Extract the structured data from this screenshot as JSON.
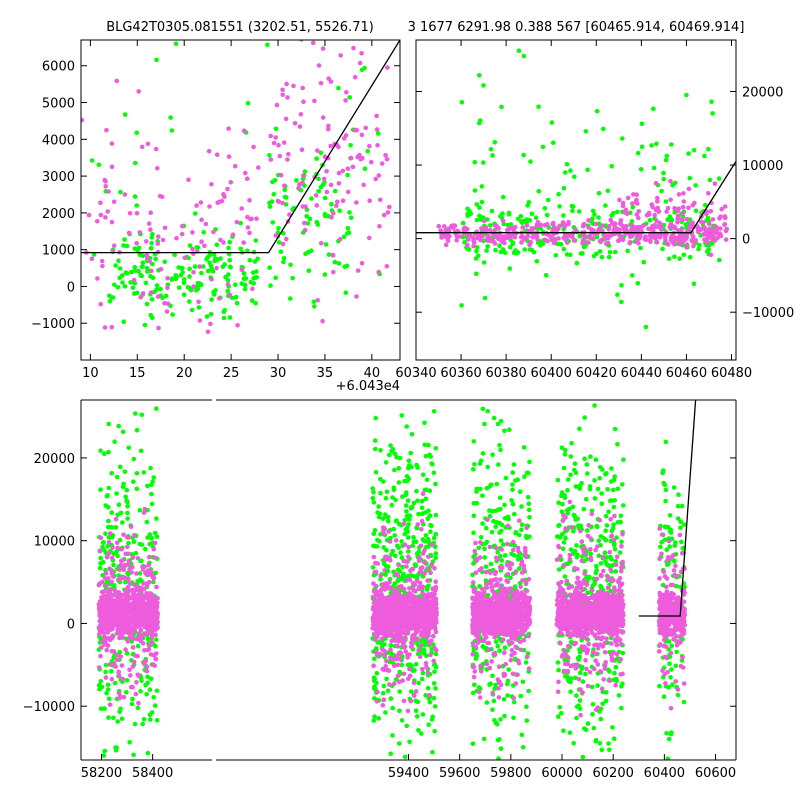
{
  "title_left": "BLG42T0305.081551 (3202.51, 5526.71)",
  "title_right": "3 1677 6291.98 0.388 567 [60465.914, 60469.914]",
  "colors": {
    "series_a": "#00ff00",
    "series_b": "#ee5cdd",
    "fit": "#000000"
  },
  "chart_data": [
    {
      "type": "scatter",
      "panel": "top-left zoom",
      "x_offset_label": "+6.043e4",
      "xlim": [
        9,
        43
      ],
      "ylim": [
        -2000,
        6700
      ],
      "xticks": [
        10,
        15,
        20,
        25,
        30,
        35,
        40
      ],
      "yticks": [
        -1000,
        0,
        1000,
        2000,
        3000,
        4000,
        5000,
        6000
      ],
      "grid": false,
      "fit_line": {
        "x": [
          9,
          29,
          43
        ],
        "y": [
          920,
          920,
          6700
        ]
      },
      "series": [
        {
          "color": "series_a",
          "clusters": [
            {
              "x": [
                12,
                28
              ],
              "y_center": 300,
              "y_spread": 700,
              "count": 190
            },
            {
              "x": [
                29,
                38
              ],
              "y_center": 2000,
              "y_spread": 1200,
              "count": 80
            },
            {
              "x": [
                9,
                42
              ],
              "y_center": 3500,
              "y_spread": 3000,
              "count": 45
            }
          ]
        },
        {
          "color": "series_b",
          "clusters": [
            {
              "x": [
                9,
                28
              ],
              "y_center": 1500,
              "y_spread": 1500,
              "count": 110
            },
            {
              "x": [
                29,
                42
              ],
              "y_center": 3500,
              "y_spread": 1800,
              "count": 110
            },
            {
              "x": [
                9,
                42
              ],
              "y_center": 3000,
              "y_spread": 3500,
              "count": 40
            }
          ]
        }
      ]
    },
    {
      "type": "scatter",
      "panel": "top-right zoom",
      "xlim": [
        60340,
        60482
      ],
      "ylim": [
        -16500,
        27000
      ],
      "xtick_labels": [
        "60340",
        "60360",
        "60380",
        "60400",
        "60420",
        "60440",
        "60460",
        "60480"
      ],
      "yticks": [
        -10000,
        0,
        10000,
        20000
      ],
      "y_axis_side": "right",
      "grid": false,
      "fit_line": {
        "x": [
          60340,
          60462,
          60482
        ],
        "y": [
          800,
          800,
          10500
        ]
      },
      "series": [
        {
          "color": "series_a",
          "clusters": [
            {
              "x": [
                60360,
                60475
              ],
              "y_center": 500,
              "y_spread": 2500,
              "count": 230
            },
            {
              "x": [
                60360,
                60475
              ],
              "y_center": 6000,
              "y_spread": 11000,
              "count": 120
            }
          ]
        },
        {
          "color": "series_b",
          "clusters": [
            {
              "x": [
                60350,
                60478
              ],
              "y_center": 700,
              "y_spread": 1000,
              "count": 380
            },
            {
              "x": [
                60430,
                60478
              ],
              "y_center": 3000,
              "y_spread": 2500,
              "count": 110
            }
          ]
        }
      ]
    },
    {
      "type": "scatter",
      "panel": "bottom full light curve",
      "xlim": [
        58120,
        60680
      ],
      "ylim": [
        -16500,
        27000
      ],
      "xticks": [
        58200,
        58400,
        59400,
        59600,
        59800,
        60000,
        60200,
        60400,
        60600
      ],
      "yticks": [
        -10000,
        0,
        10000,
        20000
      ],
      "axis_break": [
        58450,
        59250
      ],
      "grid": false,
      "fit_line": {
        "x": [
          60300,
          60462,
          60522
        ],
        "y": [
          900,
          900,
          27000
        ]
      },
      "seasons": [
        {
          "x": [
            58190,
            58420
          ],
          "green_count": 320,
          "pink_count": 900
        },
        {
          "x": [
            59260,
            59510
          ],
          "green_count": 520,
          "pink_count": 1000
        },
        {
          "x": [
            59650,
            59875
          ],
          "green_count": 320,
          "pink_count": 900
        },
        {
          "x": [
            59980,
            60240
          ],
          "green_count": 420,
          "pink_count": 950
        },
        {
          "x": [
            60380,
            60480
          ],
          "green_count": 120,
          "pink_count": 380
        }
      ]
    }
  ]
}
